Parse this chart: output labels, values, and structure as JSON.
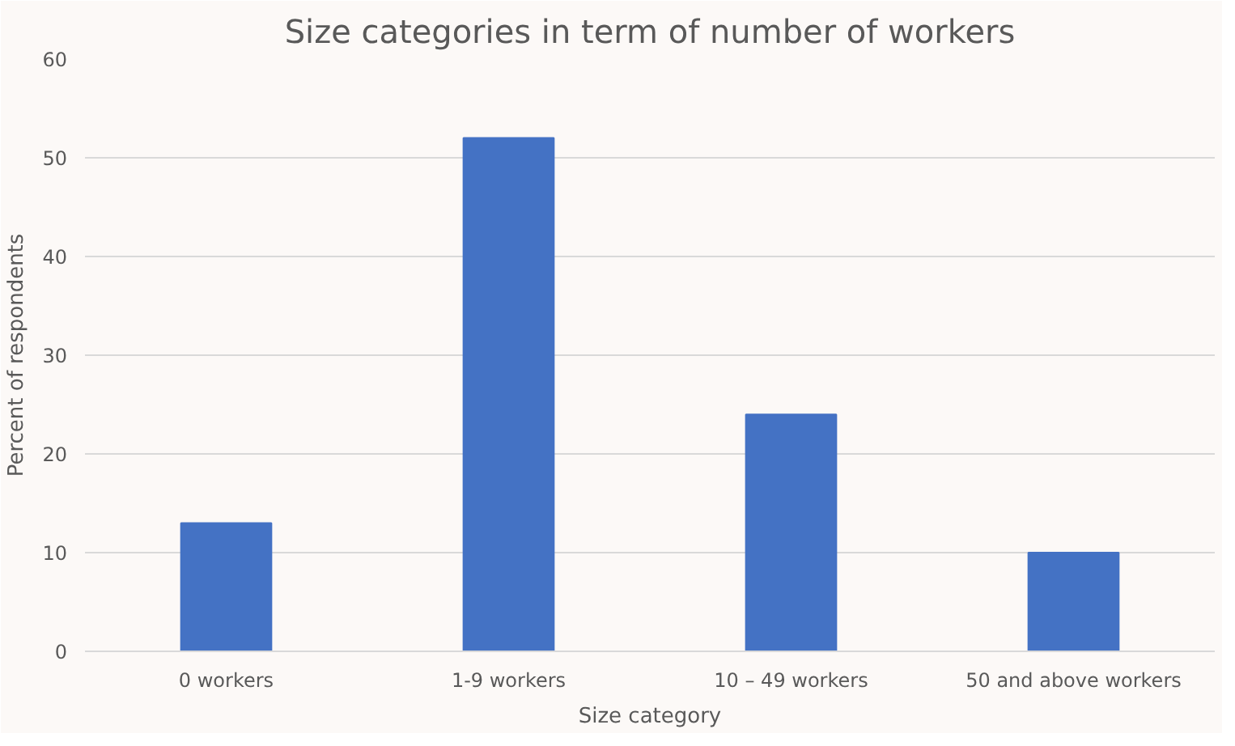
{
  "chart_data": {
    "type": "bar",
    "title": "Size categories in term of number of workers",
    "xlabel": "Size category",
    "ylabel": "Percent of respondents",
    "categories": [
      "0 workers",
      "1-9 workers",
      "10 – 49 workers",
      "50 and above workers"
    ],
    "values": [
      13,
      52,
      24,
      10
    ],
    "color": "#4472c4",
    "ylim": [
      0,
      60
    ],
    "yticks": [
      0,
      10,
      20,
      30,
      40,
      50,
      60
    ],
    "grid": "y"
  }
}
